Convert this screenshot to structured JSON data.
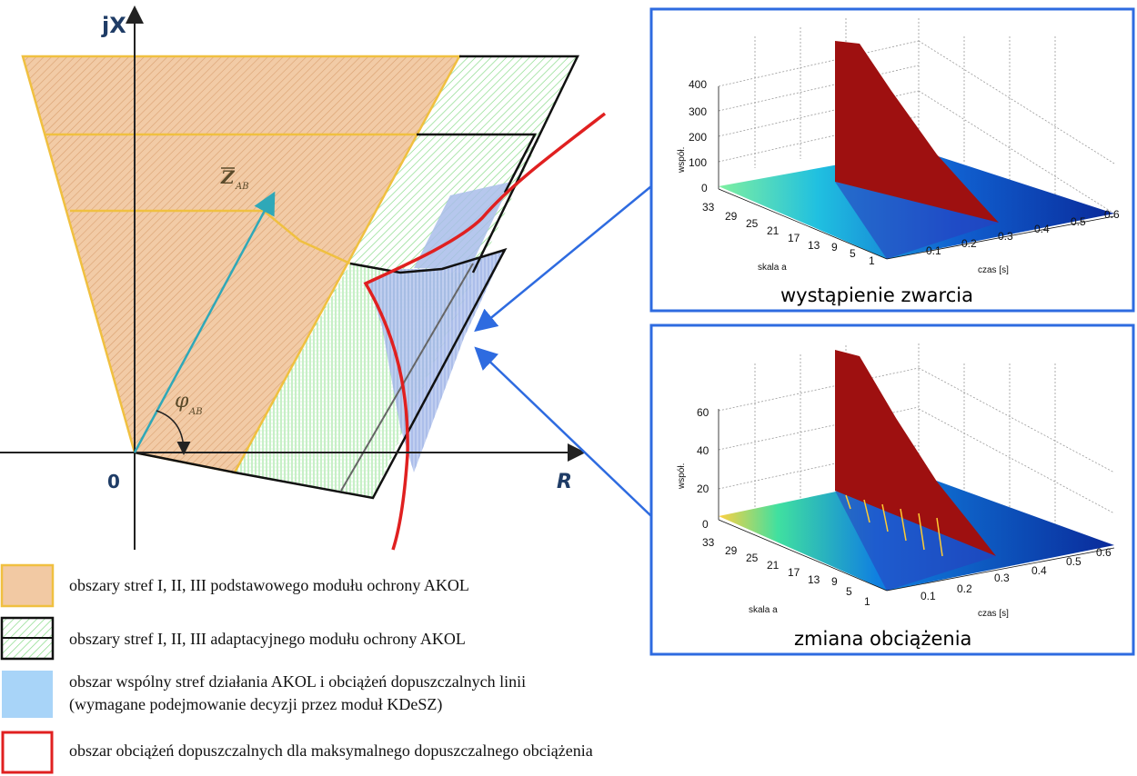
{
  "diagram": {
    "axis_y_label": "jX",
    "axis_x_label": "R",
    "origin_label": "0",
    "vector_label": "Z",
    "vector_sub": "AB",
    "angle_label": "φ",
    "angle_sub": "AB"
  },
  "panels": [
    {
      "caption": "wystąpienie zwarcia",
      "z_label": "współ.",
      "a_label": "skala a",
      "t_label": "czas [s]",
      "z_ticks": [
        "0",
        "100",
        "200",
        "300",
        "400"
      ],
      "a_ticks": [
        "33",
        "29",
        "25",
        "21",
        "17",
        "13",
        "9",
        "5",
        "1"
      ],
      "t_ticks": [
        "0.1",
        "0.2",
        "0.3",
        "0.4",
        "0.5",
        "0.6"
      ]
    },
    {
      "caption": "zmiana obciążenia",
      "z_label": "współ.",
      "a_label": "skala a",
      "t_label": "czas [s]",
      "z_ticks": [
        "0",
        "20",
        "40",
        "60"
      ],
      "a_ticks": [
        "33",
        "29",
        "25",
        "21",
        "17",
        "13",
        "9",
        "5",
        "1"
      ],
      "t_ticks": [
        "0.1",
        "0.2",
        "0.3",
        "0.4",
        "0.5",
        "0.6"
      ]
    }
  ],
  "legend": [
    {
      "text": "obszary stref I, II, III podstawowego modułu ochrony AKOL"
    },
    {
      "text": "obszary stref I, II, III adaptacyjnego modułu ochrony AKOL"
    },
    {
      "text": "obszar wspólny stref działania AKOL i obciążeń dopuszczalnych linii"
    },
    {
      "text": "(wymagane podejmowanie decyzji przez moduł KDeSZ)"
    },
    {
      "text": "obszar obciążeń dopuszczalnych dla maksymalnego dopuszczalnego obciążenia"
    }
  ],
  "colors": {
    "basic_zone": "#f2c9a3",
    "basic_border": "#f0c040",
    "adaptive_hatch": "#7fd87f",
    "common_area": "#9fb8e8",
    "load_border": "#e02020",
    "panel_border": "#2e6be0",
    "vector": "#2fa8b8"
  }
}
